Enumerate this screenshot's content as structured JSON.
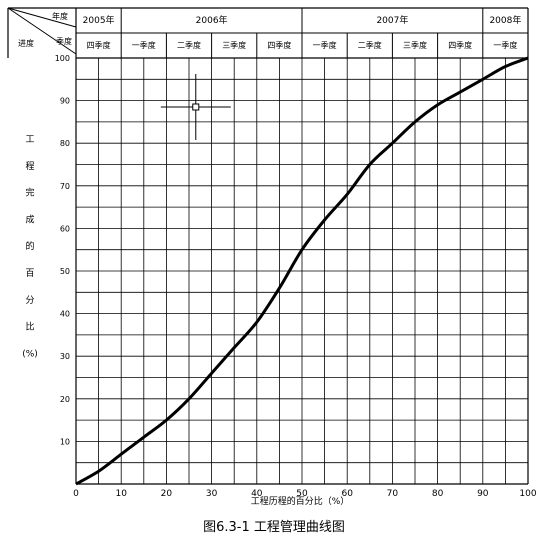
{
  "chart_data": {
    "type": "line",
    "title": "图6.3-1  工程管理曲线图",
    "xlabel": "工程历程的百分比（%）",
    "ylabel": [
      "工",
      "程",
      "完",
      "成",
      "的",
      "百",
      "分",
      "比",
      "(%)"
    ],
    "xlim": [
      0,
      100
    ],
    "ylim": [
      0,
      100
    ],
    "x_ticks": [
      0,
      10,
      20,
      30,
      40,
      50,
      60,
      70,
      80,
      90,
      100
    ],
    "y_ticks": [
      10,
      20,
      30,
      40,
      50,
      60,
      70,
      80,
      90,
      100
    ],
    "grid": true,
    "header": {
      "corner_labels": [
        "年度",
        "季度",
        "进度"
      ],
      "years": [
        {
          "label": "2005年",
          "x_start": 0,
          "x_end": 10
        },
        {
          "label": "2006年",
          "x_start": 10,
          "x_end": 50
        },
        {
          "label": "2007年",
          "x_start": 50,
          "x_end": 90
        },
        {
          "label": "2008年",
          "x_start": 90,
          "x_end": 100
        }
      ],
      "quarters": [
        {
          "label": "四季度",
          "x_start": 0,
          "x_end": 10
        },
        {
          "label": "一季度",
          "x_start": 10,
          "x_end": 20
        },
        {
          "label": "二季度",
          "x_start": 20,
          "x_end": 30
        },
        {
          "label": "三季度",
          "x_start": 30,
          "x_end": 40
        },
        {
          "label": "四季度",
          "x_start": 40,
          "x_end": 50
        },
        {
          "label": "一季度",
          "x_start": 50,
          "x_end": 60
        },
        {
          "label": "二季度",
          "x_start": 60,
          "x_end": 70
        },
        {
          "label": "三季度",
          "x_start": 70,
          "x_end": 80
        },
        {
          "label": "四季度",
          "x_start": 80,
          "x_end": 90
        },
        {
          "label": "一季度",
          "x_start": 90,
          "x_end": 100
        }
      ]
    },
    "series": [
      {
        "x": [
          0,
          5,
          10,
          15,
          20,
          25,
          30,
          35,
          40,
          45,
          50,
          55,
          60,
          65,
          70,
          75,
          80,
          85,
          90,
          95,
          100
        ],
        "y": [
          0,
          3,
          7,
          11,
          15,
          20,
          26,
          32,
          38,
          46,
          55,
          62,
          68,
          75,
          80,
          85,
          89,
          92,
          95,
          98,
          100
        ]
      }
    ]
  }
}
